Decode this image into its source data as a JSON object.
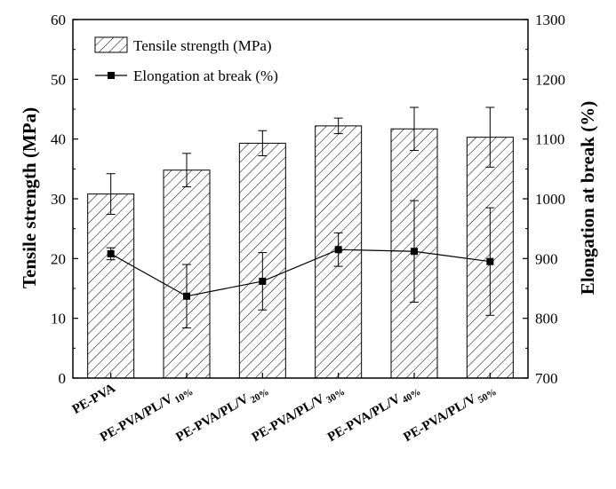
{
  "chart_data": {
    "type": "bar",
    "categories": [
      {
        "base": "PE-PVA",
        "sub": ""
      },
      {
        "base": "PE-PVA/PL/V",
        "sub": "10%"
      },
      {
        "base": "PE-PVA/PL/V",
        "sub": "20%"
      },
      {
        "base": "PE-PVA/PL/V",
        "sub": "30%"
      },
      {
        "base": "PE-PVA/PL/V",
        "sub": "40%"
      },
      {
        "base": "PE-PVA/PL/V",
        "sub": "50%"
      }
    ],
    "series": [
      {
        "name": "Tensile strength (MPa)",
        "type": "bar",
        "axis": "left",
        "values": [
          30.8,
          34.8,
          39.3,
          42.2,
          41.7,
          40.3
        ],
        "errors": [
          3.4,
          2.8,
          2.1,
          1.3,
          3.6,
          5.0
        ]
      },
      {
        "name": "Elongation at break (%)",
        "type": "line",
        "axis": "right",
        "values": [
          908,
          837,
          862,
          915,
          912,
          895
        ],
        "errors": [
          10,
          53,
          48,
          28,
          85,
          90
        ]
      }
    ],
    "y_left": {
      "label": "Tensile strength (MPa)",
      "min": 0,
      "max": 60,
      "ticks": [
        0,
        10,
        20,
        30,
        40,
        50,
        60
      ]
    },
    "y_right": {
      "label": "Elongation at break (%)",
      "min": 700,
      "max": 1300,
      "ticks": [
        700,
        800,
        900,
        1000,
        1100,
        1200,
        1300
      ]
    },
    "legend": {
      "position": "top-left"
    },
    "grid": false
  }
}
